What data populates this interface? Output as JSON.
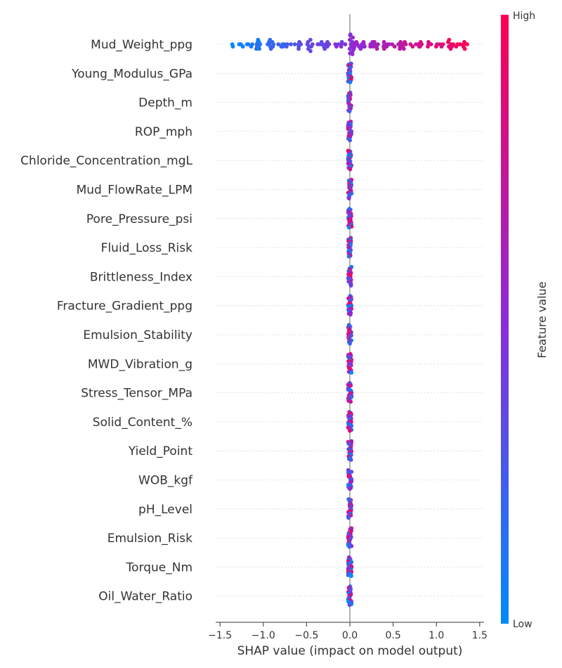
{
  "chart_data": {
    "type": "scatter",
    "subtype": "shap-beeswarm",
    "xlabel": "SHAP value (impact on model output)",
    "xlim": [
      -1.55,
      1.55
    ],
    "xticks": [
      -1.5,
      -1.0,
      -0.5,
      0.0,
      0.5,
      1.0,
      1.5
    ],
    "xtick_labels": [
      "−1.5",
      "−1.0",
      "−0.5",
      "0.0",
      "0.5",
      "1.0",
      "1.5"
    ],
    "grid": false,
    "colorbar": {
      "label": "Feature value",
      "high_label": "High",
      "low_label": "Low",
      "low_color": "#008bfb",
      "high_color": "#ff0051"
    },
    "features": [
      {
        "name": "Mud_Weight_ppg",
        "shap_range": [
          -1.4,
          1.42
        ]
      },
      {
        "name": "Young_Modulus_GPa",
        "shap_range": [
          -0.02,
          0.02
        ]
      },
      {
        "name": "Depth_m",
        "shap_range": [
          -0.02,
          0.02
        ]
      },
      {
        "name": "ROP_mph",
        "shap_range": [
          -0.02,
          0.02
        ]
      },
      {
        "name": "Chloride_Concentration_mgL",
        "shap_range": [
          -0.02,
          0.02
        ]
      },
      {
        "name": "Mud_FlowRate_LPM",
        "shap_range": [
          -0.02,
          0.02
        ]
      },
      {
        "name": "Pore_Pressure_psi",
        "shap_range": [
          -0.02,
          0.02
        ]
      },
      {
        "name": "Fluid_Loss_Risk",
        "shap_range": [
          -0.02,
          0.02
        ]
      },
      {
        "name": "Brittleness_Index",
        "shap_range": [
          -0.02,
          0.02
        ]
      },
      {
        "name": "Fracture_Gradient_ppg",
        "shap_range": [
          -0.02,
          0.02
        ]
      },
      {
        "name": "Emulsion_Stability",
        "shap_range": [
          -0.02,
          0.02
        ]
      },
      {
        "name": "MWD_Vibration_g",
        "shap_range": [
          -0.02,
          0.02
        ]
      },
      {
        "name": "Stress_Tensor_MPa",
        "shap_range": [
          -0.02,
          0.02
        ]
      },
      {
        "name": "Solid_Content_%",
        "shap_range": [
          -0.02,
          0.02
        ]
      },
      {
        "name": "Yield_Point",
        "shap_range": [
          -0.02,
          0.02
        ]
      },
      {
        "name": "WOB_kgf",
        "shap_range": [
          -0.02,
          0.02
        ]
      },
      {
        "name": "pH_Level",
        "shap_range": [
          -0.02,
          0.02
        ]
      },
      {
        "name": "Emulsion_Risk",
        "shap_range": [
          -0.02,
          0.02
        ]
      },
      {
        "name": "Torque_Nm",
        "shap_range": [
          -0.02,
          0.02
        ]
      },
      {
        "name": "Oil_Water_Ratio",
        "shap_range": [
          -0.02,
          0.02
        ]
      }
    ]
  }
}
